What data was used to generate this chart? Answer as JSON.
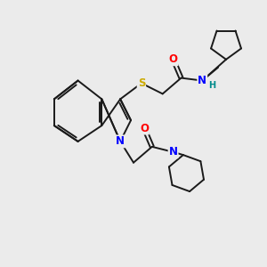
{
  "bg_color": "#ebebeb",
  "bond_color": "#1a1a1a",
  "bond_width": 1.4,
  "atom_colors": {
    "O": "#ff0000",
    "N": "#0000ff",
    "S": "#ccaa00",
    "H": "#008b8b",
    "C": "#1a1a1a"
  },
  "font_size_atom": 8.5,
  "font_size_h": 7.0,
  "dbo": 0.09
}
